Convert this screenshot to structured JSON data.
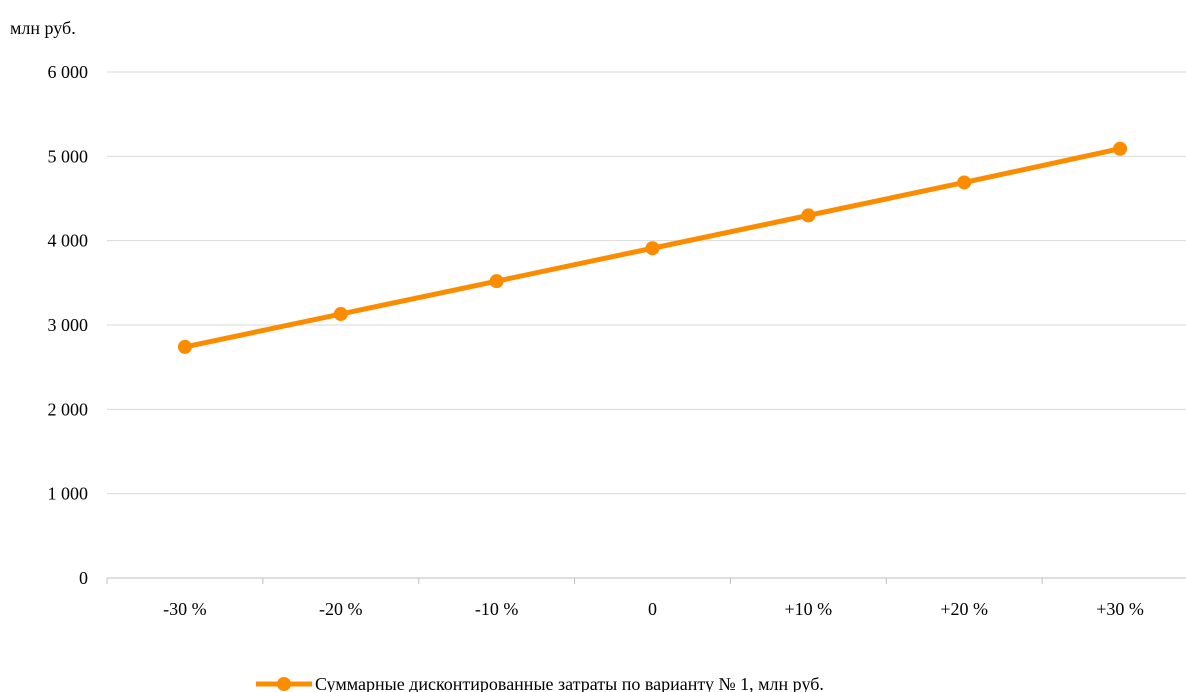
{
  "chart_data": {
    "type": "line",
    "ylabel": "млн руб.",
    "categories": [
      "-30 %",
      "-20 %",
      "-10 %",
      "0",
      "+10 %",
      "+20 %",
      "+30 %"
    ],
    "series": [
      {
        "name": "Суммарные дисконтированные затраты по варианту № 1, млн руб.",
        "values": [
          2740,
          3130,
          3520,
          3910,
          4300,
          4690,
          5090
        ],
        "color": "#fb8c00"
      }
    ],
    "ylim": [
      0,
      6000
    ],
    "yticks": [
      0,
      1000,
      2000,
      3000,
      4000,
      5000,
      6000
    ],
    "ytick_labels": [
      "0",
      "1 000",
      "2 000",
      "3 000",
      "4 000",
      "5 000",
      "6 000"
    ],
    "grid": true,
    "legend_position": "bottom",
    "marker": "circle"
  }
}
